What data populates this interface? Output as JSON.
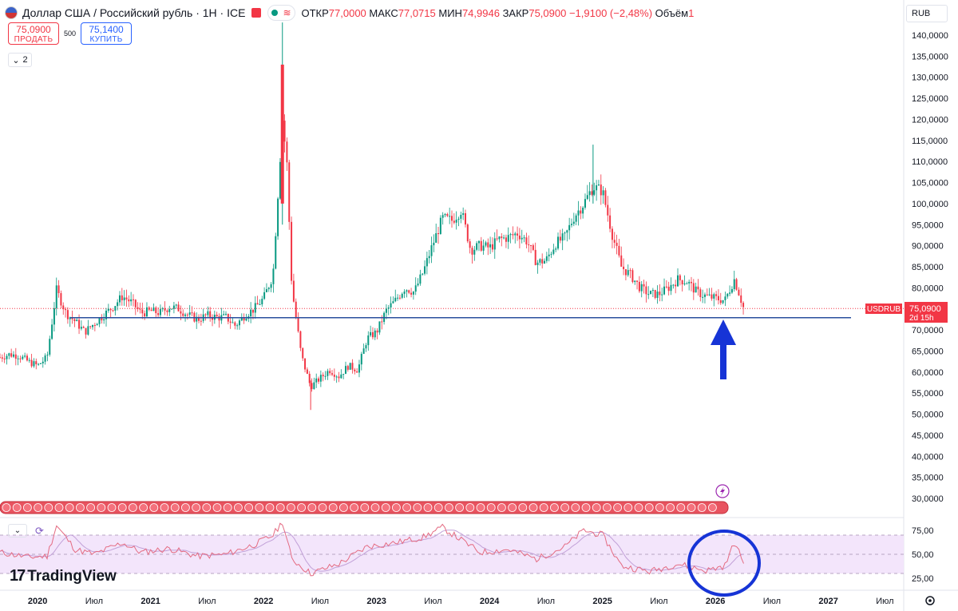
{
  "header": {
    "title": "Доллар США / Российский рубль · 1Н · ICE",
    "ohlc": {
      "open_label": "ОТКР",
      "open": "77,0000",
      "high_label": "МАКС",
      "high": "77,0715",
      "low_label": "МИН",
      "low": "74,9946",
      "close_label": "ЗАКР",
      "close": "75,0900",
      "change": "−1,9100 (−2,48%)",
      "volume_label": "Объём",
      "volume": "1"
    }
  },
  "trade": {
    "sell_price": "75,0900",
    "sell_label": "ПРОДАТЬ",
    "spread": "500",
    "buy_price": "75,1400",
    "buy_label": "КУПИТЬ"
  },
  "collapse_count": "2",
  "currency": "RUB",
  "price_axis": {
    "ticks": [
      "140,0000",
      "135,0000",
      "130,0000",
      "125,0000",
      "120,0000",
      "115,0000",
      "110,0000",
      "105,0000",
      "100,0000",
      "95,0000",
      "90,0000",
      "85,0000",
      "80,0000",
      "75,0000",
      "70,0000",
      "65,0000",
      "60,0000",
      "55,0000",
      "50,0000",
      "45,0000",
      "40,0000",
      "35,0000",
      "30,0000"
    ]
  },
  "price_label": {
    "symbol": "USDRUB",
    "price": "75,0900",
    "countdown": "2d 15h"
  },
  "rsi_axis": [
    "75,00",
    "50,00",
    "25,00"
  ],
  "time_axis": [
    "2020",
    "Июл",
    "2021",
    "Июл",
    "2022",
    "Июл",
    "2023",
    "Июл",
    "2024",
    "Июл",
    "2025",
    "Июл",
    "2026",
    "Июл",
    "2027",
    "Июл"
  ],
  "logo": "TradingView",
  "colors": {
    "up": "#089981",
    "down": "#f23645",
    "support": "#2a4f9e",
    "annotation": "#1634d6",
    "rsi": "#e46b82",
    "rsi_ma": "#c2a1d8",
    "rsi_band": "#f3e5fb"
  },
  "chart_data": {
    "type": "candlestick",
    "symbol": "USDRUB",
    "timeframe": "1W",
    "ylim": [
      26,
      143
    ],
    "support_level": 72.9,
    "last_price": 75.09,
    "x_range": [
      "2019-09",
      "2027-09"
    ],
    "price_path": [
      {
        "t": "2019-09",
        "v": 63.5
      },
      {
        "t": "2019-10",
        "v": 64.2
      },
      {
        "t": "2019-11",
        "v": 63.9
      },
      {
        "t": "2019-12",
        "v": 62.5
      },
      {
        "t": "2020-01",
        "v": 61.5
      },
      {
        "t": "2020-02",
        "v": 63.5
      },
      {
        "t": "2020-03",
        "v": 79.5
      },
      {
        "t": "2020-04",
        "v": 74.0
      },
      {
        "t": "2020-05",
        "v": 72.0
      },
      {
        "t": "2020-06",
        "v": 69.5
      },
      {
        "t": "2020-07",
        "v": 71.5
      },
      {
        "t": "2020-08",
        "v": 73.5
      },
      {
        "t": "2020-09",
        "v": 75.5
      },
      {
        "t": "2020-10",
        "v": 78.0
      },
      {
        "t": "2020-11",
        "v": 76.5
      },
      {
        "t": "2020-12",
        "v": 74.0
      },
      {
        "t": "2021-01",
        "v": 74.5
      },
      {
        "t": "2021-02",
        "v": 74.0
      },
      {
        "t": "2021-03",
        "v": 75.5
      },
      {
        "t": "2021-04",
        "v": 75.0
      },
      {
        "t": "2021-05",
        "v": 73.5
      },
      {
        "t": "2021-06",
        "v": 72.5
      },
      {
        "t": "2021-07",
        "v": 73.5
      },
      {
        "t": "2021-08",
        "v": 73.0
      },
      {
        "t": "2021-09",
        "v": 73.0
      },
      {
        "t": "2021-10",
        "v": 71.0
      },
      {
        "t": "2021-11",
        "v": 73.5
      },
      {
        "t": "2021-12",
        "v": 75.0
      },
      {
        "t": "2022-01",
        "v": 77.5
      },
      {
        "t": "2022-02",
        "v": 83.0
      },
      {
        "t": "2022-03",
        "v": 120.0
      },
      {
        "t": "2022-03-15",
        "v": 110.0
      },
      {
        "t": "2022-04",
        "v": 80.0
      },
      {
        "t": "2022-05",
        "v": 64.0
      },
      {
        "t": "2022-06",
        "v": 56.5
      },
      {
        "t": "2022-07",
        "v": 58.5
      },
      {
        "t": "2022-08",
        "v": 60.5
      },
      {
        "t": "2022-09",
        "v": 59.0
      },
      {
        "t": "2022-10",
        "v": 61.5
      },
      {
        "t": "2022-11",
        "v": 60.5
      },
      {
        "t": "2022-12",
        "v": 68.0
      },
      {
        "t": "2023-01",
        "v": 69.5
      },
      {
        "t": "2023-02",
        "v": 74.5
      },
      {
        "t": "2023-03",
        "v": 77.0
      },
      {
        "t": "2023-04",
        "v": 80.0
      },
      {
        "t": "2023-05",
        "v": 79.0
      },
      {
        "t": "2023-06",
        "v": 84.0
      },
      {
        "t": "2023-07",
        "v": 90.5
      },
      {
        "t": "2023-08",
        "v": 96.5
      },
      {
        "t": "2023-09",
        "v": 96.0
      },
      {
        "t": "2023-10",
        "v": 98.5
      },
      {
        "t": "2023-11",
        "v": 89.0
      },
      {
        "t": "2023-12",
        "v": 90.0
      },
      {
        "t": "2024-01",
        "v": 89.5
      },
      {
        "t": "2024-02",
        "v": 91.5
      },
      {
        "t": "2024-03",
        "v": 92.0
      },
      {
        "t": "2024-04",
        "v": 93.0
      },
      {
        "t": "2024-05",
        "v": 91.0
      },
      {
        "t": "2024-06",
        "v": 86.0
      },
      {
        "t": "2024-07",
        "v": 86.5
      },
      {
        "t": "2024-08",
        "v": 90.5
      },
      {
        "t": "2024-09",
        "v": 92.0
      },
      {
        "t": "2024-10",
        "v": 97.0
      },
      {
        "t": "2024-11",
        "v": 100.0
      },
      {
        "t": "2024-12",
        "v": 104.0
      },
      {
        "t": "2025-01",
        "v": 103.0
      },
      {
        "t": "2025-02",
        "v": 93.0
      },
      {
        "t": "2025-03",
        "v": 85.0
      },
      {
        "t": "2025-04",
        "v": 83.0
      },
      {
        "t": "2025-05",
        "v": 80.0
      },
      {
        "t": "2025-06",
        "v": 78.5
      },
      {
        "t": "2025-07",
        "v": 78.5
      },
      {
        "t": "2025-08",
        "v": 80.0
      },
      {
        "t": "2025-09",
        "v": 82.0
      },
      {
        "t": "2025-10",
        "v": 81.5
      },
      {
        "t": "2025-11",
        "v": 79.0
      },
      {
        "t": "2025-12",
        "v": 78.0
      },
      {
        "t": "2026-01",
        "v": 77.5
      },
      {
        "t": "2026-02",
        "v": 77.0
      },
      {
        "t": "2026-03",
        "v": 82.0
      },
      {
        "t": "2026-03-15",
        "v": 79.0
      },
      {
        "t": "2026-04",
        "v": 75.09
      }
    ],
    "rsi": {
      "ylim": [
        15,
        85
      ],
      "bands": [
        70,
        30
      ],
      "ticks": [
        75,
        50,
        25
      ],
      "path": [
        {
          "t": "2019-09",
          "v": 52
        },
        {
          "t": "2019-12",
          "v": 47
        },
        {
          "t": "2020-02",
          "v": 48
        },
        {
          "t": "2020-03",
          "v": 80
        },
        {
          "t": "2020-05",
          "v": 55
        },
        {
          "t": "2020-07",
          "v": 50
        },
        {
          "t": "2020-10",
          "v": 62
        },
        {
          "t": "2020-12",
          "v": 52
        },
        {
          "t": "2021-03",
          "v": 56
        },
        {
          "t": "2021-06",
          "v": 48
        },
        {
          "t": "2021-09",
          "v": 50
        },
        {
          "t": "2021-12",
          "v": 60
        },
        {
          "t": "2022-02",
          "v": 70
        },
        {
          "t": "2022-03",
          "v": 84
        },
        {
          "t": "2022-04",
          "v": 45
        },
        {
          "t": "2022-06",
          "v": 30
        },
        {
          "t": "2022-09",
          "v": 40
        },
        {
          "t": "2022-12",
          "v": 58
        },
        {
          "t": "2023-03",
          "v": 62
        },
        {
          "t": "2023-06",
          "v": 68
        },
        {
          "t": "2023-08",
          "v": 78
        },
        {
          "t": "2023-10",
          "v": 65
        },
        {
          "t": "2023-12",
          "v": 52
        },
        {
          "t": "2024-03",
          "v": 55
        },
        {
          "t": "2024-06",
          "v": 45
        },
        {
          "t": "2024-09",
          "v": 58
        },
        {
          "t": "2024-11",
          "v": 75
        },
        {
          "t": "2025-01",
          "v": 70
        },
        {
          "t": "2025-03",
          "v": 38
        },
        {
          "t": "2025-06",
          "v": 32
        },
        {
          "t": "2025-09",
          "v": 40
        },
        {
          "t": "2025-12",
          "v": 33
        },
        {
          "t": "2026-02",
          "v": 38
        },
        {
          "t": "2026-03",
          "v": 62
        },
        {
          "t": "2026-04",
          "v": 42
        }
      ]
    }
  }
}
